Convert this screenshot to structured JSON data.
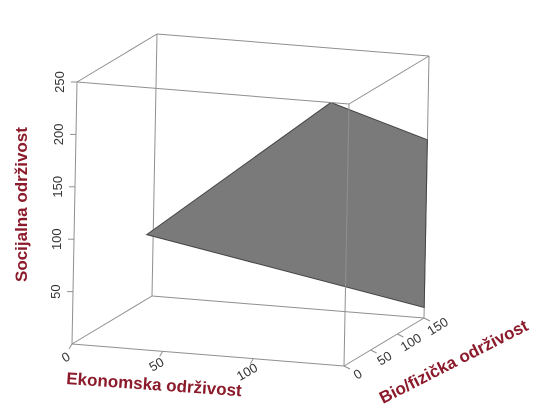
{
  "chart_data": {
    "type": "3d-surface",
    "title": "",
    "colors": {
      "axis_title": "#8b1a2a",
      "plane_fill": "#7a7a7a",
      "plane_stroke": "#444444",
      "box_line": "#8f8f8f",
      "tick_text": "#333333"
    },
    "x_axis": {
      "label": "Ekonomska održivost",
      "range": [
        0,
        150
      ],
      "ticks": [
        {
          "value": 0,
          "label": "0"
        },
        {
          "value": 50,
          "label": "50"
        },
        {
          "value": 100,
          "label": "100"
        }
      ]
    },
    "y_axis": {
      "label": "Bio/fizička održivost",
      "range": [
        0,
        150
      ],
      "ticks": [
        {
          "value": 0,
          "label": "0"
        },
        {
          "value": 50,
          "label": "50"
        },
        {
          "value": 100,
          "label": "100"
        },
        {
          "value": 150,
          "label": "150"
        }
      ]
    },
    "z_axis": {
      "label": "Socijalna održivost",
      "range": [
        0,
        250
      ],
      "ticks": [
        {
          "value": 50,
          "label": "50"
        },
        {
          "value": 100,
          "label": "100"
        },
        {
          "value": 150,
          "label": "150"
        },
        {
          "value": 200,
          "label": "200"
        },
        {
          "value": 250,
          "label": "250"
        }
      ]
    },
    "surface": {
      "type": "plane",
      "corners": [
        {
          "x": 140,
          "y": 0,
          "z": 250
        },
        {
          "x": 150,
          "y": 150,
          "z": 170
        },
        {
          "x": 150,
          "y": 150,
          "z": 10
        },
        {
          "x": 40,
          "y": 0,
          "z": 110
        }
      ]
    }
  }
}
